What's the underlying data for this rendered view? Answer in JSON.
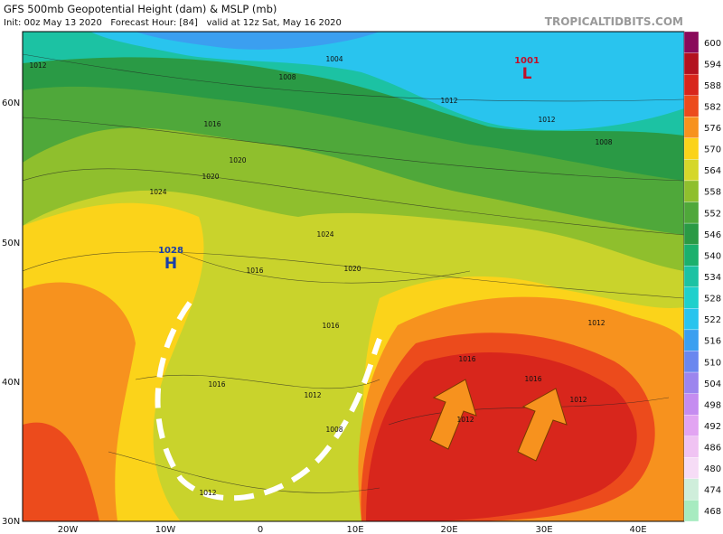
{
  "header": {
    "title": "GFS 500mb Geopotential Height (dam) & MSLP (mb)",
    "subtitle": "Init: 00z May 13 2020   Forecast Hour: [84]   valid at 12z Sat, May 16 2020",
    "watermark": "TROPICALTIDBITS.COM"
  },
  "map": {
    "lat_labels": [
      "60N",
      "50N",
      "40N",
      "30N"
    ],
    "lon_labels": [
      "20W",
      "10W",
      "0",
      "10E",
      "20E",
      "30E",
      "40E"
    ],
    "pressure_centers": [
      {
        "label": "H",
        "value": "1028"
      },
      {
        "label": "L",
        "value": "1001"
      }
    ],
    "isobar_labels": [
      "1012",
      "1008",
      "1004",
      "1012",
      "1016",
      "1020",
      "1024",
      "1020",
      "1024",
      "1016",
      "1020",
      "1016",
      "1012",
      "1008",
      "1012",
      "1016",
      "1012",
      "1016",
      "1012",
      "1008",
      "1012",
      "1012",
      "1016"
    ]
  },
  "colorbar": {
    "levels": [
      600,
      594,
      588,
      582,
      576,
      570,
      564,
      558,
      552,
      546,
      540,
      534,
      528,
      522,
      516,
      510,
      504,
      498,
      492,
      486,
      480,
      474,
      468
    ],
    "colors": [
      "#8a0a5a",
      "#b3121f",
      "#d8261c",
      "#ec4b1c",
      "#f7921e",
      "#fbd31a",
      "#d5d72a",
      "#8fbf2d",
      "#4fa83a",
      "#2a9a45",
      "#1bb06d",
      "#1cc2a3",
      "#1fd0cc",
      "#29c4ee",
      "#3b9ff0",
      "#6a87ef",
      "#9c85ee",
      "#c58cf0",
      "#e2a4f2",
      "#f0c3f3",
      "#f6dcf6",
      "#cfeedb",
      "#a7ebc0"
    ]
  }
}
